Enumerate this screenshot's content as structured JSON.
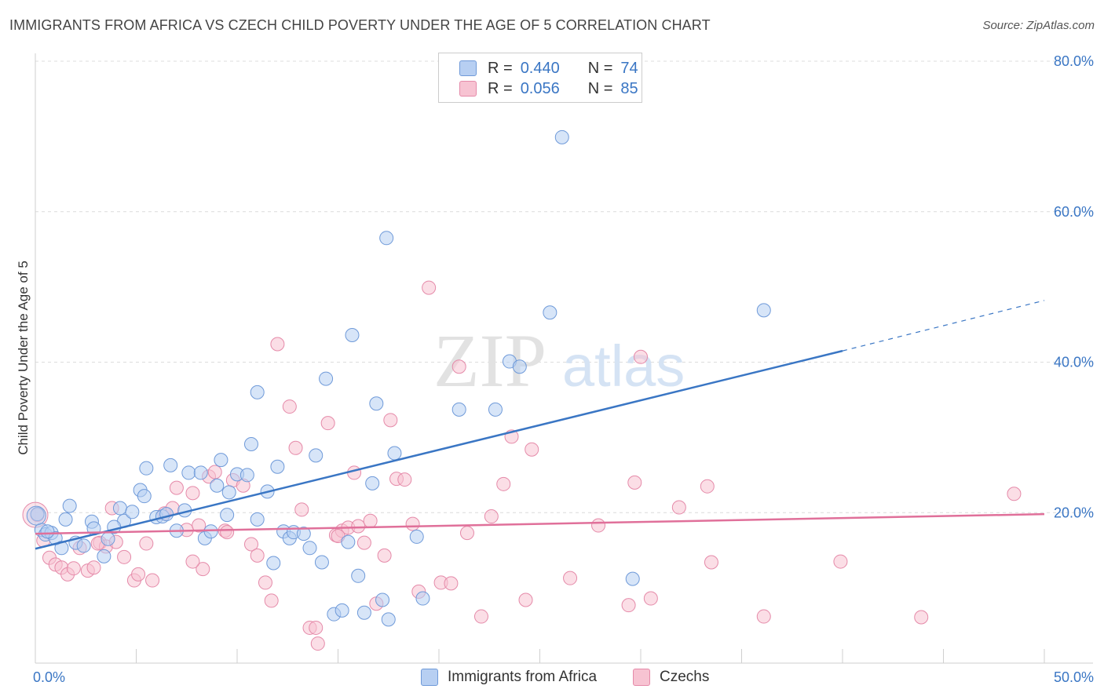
{
  "title": "IMMIGRANTS FROM AFRICA VS CZECH CHILD POVERTY UNDER THE AGE OF 5 CORRELATION CHART",
  "source": "Source: ZipAtlas.com",
  "watermark": {
    "zip": "ZIP",
    "atlas": "atlas"
  },
  "legend": {
    "r_label": "R =",
    "n_label": "N =",
    "rows": [
      {
        "r": "0.440",
        "n": "74",
        "fill": "#b7cff2",
        "stroke": "#6f9ad9"
      },
      {
        "r": "0.056",
        "n": "85",
        "fill": "#f7c3d2",
        "stroke": "#e58aa9"
      }
    ]
  },
  "chart_data": {
    "type": "scatter",
    "title": "IMMIGRANTS FROM AFRICA VS CZECH CHILD POVERTY UNDER THE AGE OF 5 CORRELATION CHART",
    "xlabel": "",
    "ylabel": "Child Poverty Under the Age of 5",
    "xlim": [
      0,
      50
    ],
    "ylim": [
      0,
      80
    ],
    "x_tick_labels": [
      "0.0%",
      "50.0%"
    ],
    "y_ticks": [
      20,
      40,
      60,
      80
    ],
    "y_tick_labels": [
      "20.0%",
      "40.0%",
      "60.0%",
      "80.0%"
    ],
    "grid": true,
    "series": [
      {
        "name": "Immigrants from Africa",
        "color": "#3a76c4",
        "fill": "#b7cff2",
        "trend": {
          "x0": 0,
          "y0": 15.2,
          "x1": 40,
          "y1": 41.5,
          "dash_to_x": 50,
          "dash_to_y": 48.2
        },
        "points": [
          [
            0.3,
            17.7
          ],
          [
            0.5,
            17.1
          ],
          [
            0.8,
            17.3
          ],
          [
            1.0,
            16.6
          ],
          [
            1.3,
            15.3
          ],
          [
            1.5,
            19.1
          ],
          [
            1.7,
            20.9
          ],
          [
            2.0,
            16.0
          ],
          [
            2.4,
            15.6
          ],
          [
            2.8,
            18.8
          ],
          [
            2.9,
            17.9
          ],
          [
            3.4,
            14.2
          ],
          [
            3.6,
            16.5
          ],
          [
            4.2,
            20.6
          ],
          [
            4.4,
            18.9
          ],
          [
            4.8,
            20.1
          ],
          [
            5.2,
            23.0
          ],
          [
            5.4,
            22.2
          ],
          [
            5.5,
            25.9
          ],
          [
            6.0,
            19.4
          ],
          [
            6.3,
            19.5
          ],
          [
            6.5,
            19.8
          ],
          [
            6.7,
            26.3
          ],
          [
            7.0,
            17.6
          ],
          [
            7.4,
            20.3
          ],
          [
            7.6,
            25.3
          ],
          [
            8.2,
            25.3
          ],
          [
            8.4,
            16.6
          ],
          [
            8.7,
            17.5
          ],
          [
            9.0,
            23.6
          ],
          [
            9.2,
            27.0
          ],
          [
            9.5,
            19.7
          ],
          [
            9.6,
            22.7
          ],
          [
            10.0,
            25.1
          ],
          [
            10.5,
            25.0
          ],
          [
            10.7,
            29.1
          ],
          [
            11.0,
            36.0
          ],
          [
            11.0,
            19.1
          ],
          [
            11.5,
            22.8
          ],
          [
            11.8,
            13.3
          ],
          [
            12.0,
            26.1
          ],
          [
            12.3,
            17.5
          ],
          [
            12.6,
            16.6
          ],
          [
            12.8,
            17.4
          ],
          [
            13.3,
            17.2
          ],
          [
            13.6,
            15.3
          ],
          [
            13.9,
            27.6
          ],
          [
            14.2,
            13.4
          ],
          [
            14.4,
            37.8
          ],
          [
            14.8,
            6.5
          ],
          [
            15.2,
            7.0
          ],
          [
            15.5,
            16.1
          ],
          [
            15.7,
            43.6
          ],
          [
            16.0,
            11.6
          ],
          [
            16.3,
            6.7
          ],
          [
            16.7,
            23.9
          ],
          [
            16.9,
            34.5
          ],
          [
            17.2,
            8.4
          ],
          [
            17.4,
            56.5
          ],
          [
            17.5,
            5.8
          ],
          [
            17.8,
            27.9
          ],
          [
            18.9,
            16.8
          ],
          [
            19.2,
            8.6
          ],
          [
            21.0,
            33.7
          ],
          [
            22.8,
            33.7
          ],
          [
            23.5,
            40.1
          ],
          [
            24.0,
            39.4
          ],
          [
            25.5,
            46.6
          ],
          [
            26.1,
            69.9
          ],
          [
            29.6,
            11.2
          ],
          [
            36.1,
            46.9
          ],
          [
            0.1,
            19.8
          ],
          [
            0.6,
            17.5
          ],
          [
            3.9,
            18.1
          ]
        ]
      },
      {
        "name": "Czechs",
        "color": "#e0709a",
        "fill": "#f7c3d2",
        "trend": {
          "x0": 0,
          "y0": 17.2,
          "x1": 50,
          "y1": 19.8
        },
        "points": [
          [
            0.1,
            19.7
          ],
          [
            0.4,
            16.3
          ],
          [
            0.7,
            14.0
          ],
          [
            1.0,
            13.1
          ],
          [
            1.3,
            12.7
          ],
          [
            1.6,
            11.8
          ],
          [
            1.9,
            12.6
          ],
          [
            2.2,
            15.3
          ],
          [
            2.6,
            12.3
          ],
          [
            2.9,
            12.7
          ],
          [
            3.2,
            16.0
          ],
          [
            3.5,
            15.5
          ],
          [
            3.8,
            20.6
          ],
          [
            4.0,
            16.1
          ],
          [
            4.4,
            14.1
          ],
          [
            4.9,
            11.0
          ],
          [
            5.1,
            11.8
          ],
          [
            5.5,
            15.9
          ],
          [
            5.8,
            11.0
          ],
          [
            6.4,
            19.9
          ],
          [
            6.8,
            20.6
          ],
          [
            7.0,
            23.3
          ],
          [
            7.5,
            17.7
          ],
          [
            7.8,
            22.6
          ],
          [
            8.1,
            18.3
          ],
          [
            8.3,
            12.5
          ],
          [
            8.6,
            24.8
          ],
          [
            8.9,
            25.4
          ],
          [
            9.4,
            17.6
          ],
          [
            9.8,
            24.3
          ],
          [
            10.3,
            23.6
          ],
          [
            10.7,
            15.8
          ],
          [
            11.0,
            14.3
          ],
          [
            11.4,
            10.7
          ],
          [
            11.7,
            8.3
          ],
          [
            12.0,
            42.4
          ],
          [
            12.6,
            34.1
          ],
          [
            12.9,
            28.6
          ],
          [
            13.2,
            20.4
          ],
          [
            13.6,
            4.7
          ],
          [
            13.9,
            4.7
          ],
          [
            14.0,
            2.6
          ],
          [
            14.5,
            31.9
          ],
          [
            14.9,
            17.0
          ],
          [
            15.2,
            17.6
          ],
          [
            15.5,
            18.0
          ],
          [
            15.8,
            25.3
          ],
          [
            16.3,
            16.0
          ],
          [
            16.6,
            18.9
          ],
          [
            16.9,
            7.9
          ],
          [
            17.3,
            14.3
          ],
          [
            17.6,
            32.3
          ],
          [
            17.9,
            24.5
          ],
          [
            18.3,
            24.4
          ],
          [
            18.7,
            18.5
          ],
          [
            19.0,
            9.5
          ],
          [
            19.5,
            49.9
          ],
          [
            20.1,
            10.7
          ],
          [
            20.6,
            10.6
          ],
          [
            21.0,
            39.4
          ],
          [
            21.4,
            17.3
          ],
          [
            22.1,
            6.2
          ],
          [
            22.6,
            19.5
          ],
          [
            23.2,
            23.8
          ],
          [
            23.6,
            30.1
          ],
          [
            24.3,
            8.4
          ],
          [
            24.6,
            28.4
          ],
          [
            26.5,
            11.3
          ],
          [
            27.9,
            18.3
          ],
          [
            29.4,
            7.7
          ],
          [
            29.7,
            24.0
          ],
          [
            30.0,
            40.7
          ],
          [
            30.5,
            8.6
          ],
          [
            31.9,
            20.7
          ],
          [
            33.3,
            23.5
          ],
          [
            33.5,
            13.4
          ],
          [
            36.1,
            6.2
          ],
          [
            39.9,
            13.5
          ],
          [
            43.9,
            6.1
          ],
          [
            48.5,
            22.5
          ],
          [
            7.8,
            13.5
          ],
          [
            9.5,
            17.4
          ],
          [
            15.0,
            16.9
          ],
          [
            16.0,
            18.2
          ],
          [
            3.1,
            15.9
          ]
        ]
      }
    ]
  },
  "bottom_legend": [
    "Immigrants from Africa",
    "Czechs"
  ]
}
